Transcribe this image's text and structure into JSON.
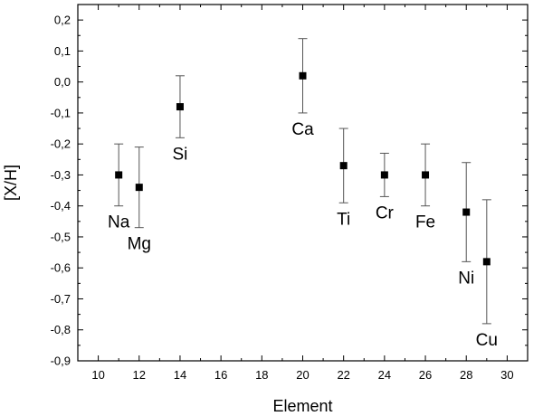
{
  "chart_data": {
    "type": "scatter",
    "xlabel": "Element",
    "ylabel": "[X/H]",
    "xlim": [
      9,
      31
    ],
    "ylim": [
      -0.9,
      0.25
    ],
    "x_ticks": [
      10,
      12,
      14,
      16,
      18,
      20,
      22,
      24,
      26,
      28,
      30
    ],
    "x_tick_labels": [
      "10",
      "12",
      "14",
      "16",
      "18",
      "20",
      "22",
      "24",
      "26",
      "28",
      "30"
    ],
    "y_ticks": [
      0.2,
      0.1,
      0.0,
      -0.1,
      -0.2,
      -0.3,
      -0.4,
      -0.5,
      -0.6,
      -0.7,
      -0.8,
      -0.9
    ],
    "y_tick_labels": [
      "0,2",
      "0,1",
      "0,0",
      "-0,1",
      "-0,2",
      "-0,3",
      "-0,4",
      "-0,5",
      "-0,6",
      "-0,7",
      "-0,8",
      "-0,9"
    ],
    "grid": false,
    "legend": "none",
    "marker": "square",
    "points": [
      {
        "label": "Na",
        "x": 11,
        "y": -0.3,
        "y_err_low": -0.4,
        "y_err_high": -0.2,
        "label_side": "below"
      },
      {
        "label": "Mg",
        "x": 12,
        "y": -0.34,
        "y_err_low": -0.47,
        "y_err_high": -0.21,
        "label_side": "below"
      },
      {
        "label": "Si",
        "x": 14,
        "y": -0.08,
        "y_err_low": -0.18,
        "y_err_high": 0.02,
        "label_side": "below"
      },
      {
        "label": "Ca",
        "x": 20,
        "y": 0.02,
        "y_err_low": -0.1,
        "y_err_high": 0.14,
        "label_side": "below"
      },
      {
        "label": "Ti",
        "x": 22,
        "y": -0.27,
        "y_err_low": -0.39,
        "y_err_high": -0.15,
        "label_side": "below"
      },
      {
        "label": "Cr",
        "x": 24,
        "y": -0.3,
        "y_err_low": -0.37,
        "y_err_high": -0.23,
        "label_side": "below"
      },
      {
        "label": "Fe",
        "x": 26,
        "y": -0.3,
        "y_err_low": -0.4,
        "y_err_high": -0.2,
        "label_side": "below"
      },
      {
        "label": "Ni",
        "x": 28,
        "y": -0.42,
        "y_err_low": -0.58,
        "y_err_high": -0.26,
        "label_side": "below"
      },
      {
        "label": "Cu",
        "x": 29,
        "y": -0.58,
        "y_err_low": -0.78,
        "y_err_high": -0.38,
        "label_side": "below"
      }
    ],
    "colors": {
      "marker": "#000000",
      "errorbar": "#555555",
      "axis": "#000000"
    }
  }
}
